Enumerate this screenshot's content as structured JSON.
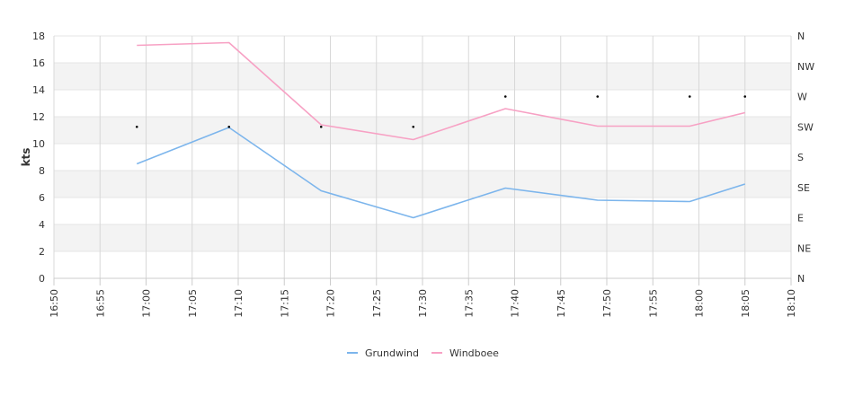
{
  "chart_data": {
    "type": "line",
    "ylabel": "kts",
    "ylim": [
      0,
      18
    ],
    "yticks": [
      0,
      2,
      4,
      6,
      8,
      10,
      12,
      14,
      16,
      18
    ],
    "xlim": [
      "16:50",
      "18:10"
    ],
    "xticks": [
      "16:50",
      "16:55",
      "17:00",
      "17:05",
      "17:10",
      "17:15",
      "17:20",
      "17:25",
      "17:30",
      "17:35",
      "17:40",
      "17:45",
      "17:50",
      "17:55",
      "18:00",
      "18:05",
      "18:10"
    ],
    "x": [
      "16:59",
      "17:09",
      "17:19",
      "17:29",
      "17:39",
      "17:49",
      "17:59",
      "18:05"
    ],
    "series": [
      {
        "name": "Grundwind",
        "color": "#7cb5ec",
        "values": [
          8.5,
          11.2,
          6.5,
          4.5,
          6.7,
          5.8,
          5.7,
          7.0
        ]
      },
      {
        "name": "Windboee",
        "color": "#f7a1c4",
        "values": [
          17.3,
          17.5,
          11.4,
          10.3,
          12.6,
          11.3,
          11.3,
          12.3
        ]
      }
    ],
    "direction_axis": {
      "labels": [
        "N",
        "NE",
        "E",
        "SE",
        "S",
        "SW",
        "W",
        "NW",
        "N"
      ],
      "x": [
        "16:59",
        "17:09",
        "17:19",
        "17:29",
        "17:39",
        "17:49",
        "17:59",
        "18:05"
      ],
      "values": [
        "SW",
        "SW",
        "SW",
        "SW",
        "W",
        "W",
        "W",
        "W"
      ]
    },
    "grid": true,
    "legend": "bottom-center"
  }
}
